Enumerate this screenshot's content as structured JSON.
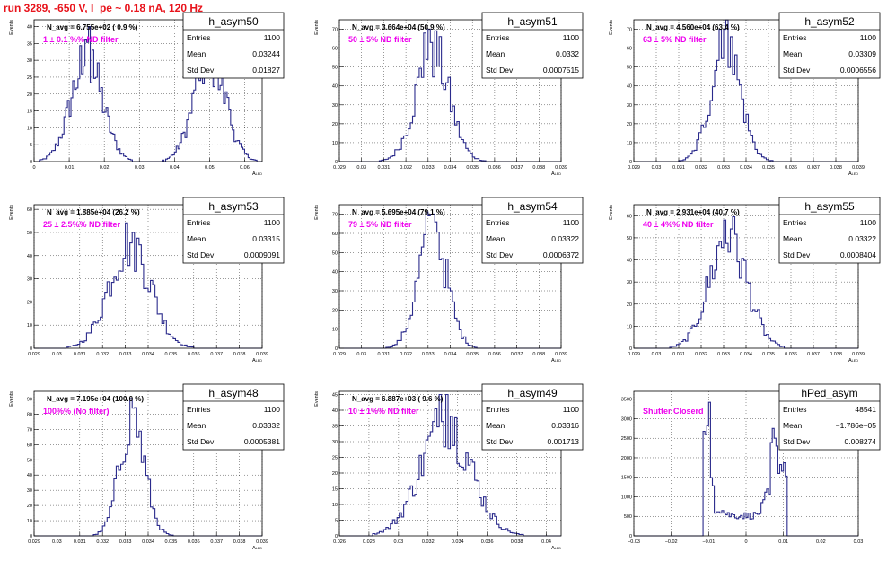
{
  "title": "run 3289,  -650 V, I_pe ~ 0.18 nA, 120 Hz",
  "colors": {
    "hist": "#2b2b8c",
    "annotation": "#ee00ee",
    "title": "#e8141c",
    "frame": "#000000"
  },
  "chart_data": [
    {
      "type": "histogram",
      "name": "h_asym50",
      "navg": "N_avg = 6.755e+02 ( 0.9 %)",
      "filter": "1 ± 0.1 %% ND filter",
      "stats": [
        [
          "Entries",
          "1100"
        ],
        [
          "Mean",
          "0.03244"
        ],
        [
          "Std Dev",
          "0.01827"
        ]
      ],
      "ylabel": "Events",
      "xlabel": "A_LED",
      "xlim": [
        0,
        0.065
      ],
      "ylim": [
        0,
        42
      ],
      "xticks": [
        0,
        0.01,
        0.02,
        0.03,
        0.04,
        0.05,
        0.06
      ],
      "xticklabels": [
        "0",
        "0.01",
        "0.02",
        "0.03",
        "0.04",
        "0.05",
        "0.06"
      ],
      "yticks": [
        0,
        5,
        10,
        15,
        20,
        25,
        30,
        35,
        40
      ],
      "peaks": [
        {
          "mu": 0.015,
          "sigma": 0.0045,
          "amp": 30
        },
        {
          "mu": 0.05,
          "sigma": 0.0045,
          "amp": 30
        }
      ],
      "spikes": [
        [
          0.0155,
          40
        ],
        [
          0.0148,
          36
        ],
        [
          0.0138,
          26
        ],
        [
          0.0165,
          33
        ],
        [
          0.046,
          27
        ],
        [
          0.047,
          24
        ],
        [
          0.05,
          30
        ],
        [
          0.0505,
          36
        ],
        [
          0.052,
          28
        ],
        [
          0.055,
          19
        ]
      ],
      "nbins": 130
    },
    {
      "type": "histogram",
      "name": "h_asym51",
      "navg": "N_avg = 3.664e+04 (50.9 %)",
      "filter": "50 ± 5% ND filter",
      "stats": [
        [
          "Entries",
          "1100"
        ],
        [
          "Mean",
          "0.0332"
        ],
        [
          "Std Dev",
          "0.0007515"
        ]
      ],
      "ylabel": "Events",
      "xlabel": "A_LED",
      "xlim": [
        0.029,
        0.039
      ],
      "ylim": [
        0,
        75
      ],
      "xticks": [
        0.029,
        0.03,
        0.031,
        0.032,
        0.033,
        0.034,
        0.035,
        0.036,
        0.037,
        0.038,
        0.039
      ],
      "xticklabels": [
        "0.029",
        "0.03",
        "0.031",
        "0.032",
        "0.033",
        "0.034",
        "0.035",
        "0.036",
        "0.037",
        "0.038",
        "0.039"
      ],
      "yticks": [
        0,
        10,
        20,
        30,
        40,
        50,
        60,
        70
      ],
      "peaks": [
        {
          "mu": 0.0332,
          "sigma": 0.00075,
          "amp": 58
        }
      ],
      "spikes": [
        [
          0.0329,
          68
        ],
        [
          0.033,
          70
        ],
        [
          0.0332,
          63
        ]
      ],
      "nbins": 100
    },
    {
      "type": "histogram",
      "name": "h_asym52",
      "navg": "N_avg = 4.560e+04 (63.4 %)",
      "filter": "63 ± 5% ND filter",
      "stats": [
        [
          "Entries",
          "1100"
        ],
        [
          "Mean",
          "0.03309"
        ],
        [
          "Std Dev",
          "0.0006556"
        ]
      ],
      "ylabel": "Events",
      "xlabel": "A_LED",
      "xlim": [
        0.029,
        0.039
      ],
      "ylim": [
        0,
        75
      ],
      "xticks": [
        0.029,
        0.03,
        0.031,
        0.032,
        0.033,
        0.034,
        0.035,
        0.036,
        0.037,
        0.038,
        0.039
      ],
      "xticklabels": [
        "0.029",
        "0.03",
        "0.031",
        "0.032",
        "0.033",
        "0.034",
        "0.035",
        "0.036",
        "0.037",
        "0.038",
        "0.039"
      ],
      "yticks": [
        0,
        10,
        20,
        30,
        40,
        50,
        60,
        70
      ],
      "peaks": [
        {
          "mu": 0.0331,
          "sigma": 0.00065,
          "amp": 62
        }
      ],
      "spikes": [
        [
          0.0329,
          70
        ],
        [
          0.0331,
          70
        ],
        [
          0.0333,
          66
        ]
      ],
      "nbins": 100
    },
    {
      "type": "histogram",
      "name": "h_asym53",
      "navg": "N_avg = 1.885e+04 (26.2 %)",
      "filter": "25 ± 2.5%% ND filter",
      "stats": [
        [
          "Entries",
          "1100"
        ],
        [
          "Mean",
          "0.03315"
        ],
        [
          "Std Dev",
          "0.0009091"
        ]
      ],
      "ylabel": "Events",
      "xlabel": "A_LED",
      "xlim": [
        0.029,
        0.039
      ],
      "ylim": [
        0,
        62
      ],
      "xticks": [
        0.029,
        0.03,
        0.031,
        0.032,
        0.033,
        0.034,
        0.035,
        0.036,
        0.037,
        0.038,
        0.039
      ],
      "xticklabels": [
        "0.029",
        "0.03",
        "0.031",
        "0.032",
        "0.033",
        "0.034",
        "0.035",
        "0.036",
        "0.037",
        "0.038",
        "0.039"
      ],
      "yticks": [
        0,
        10,
        20,
        30,
        40,
        50,
        60
      ],
      "peaks": [
        {
          "mu": 0.0332,
          "sigma": 0.0009,
          "amp": 46
        }
      ],
      "spikes": [
        [
          0.0333,
          51
        ],
        [
          0.0334,
          50
        ]
      ],
      "nbins": 100
    },
    {
      "type": "histogram",
      "name": "h_asym54",
      "navg": "N_avg = 5.695e+04 (79.1 %)",
      "filter": "79 ± 5% ND filter",
      "stats": [
        [
          "Entries",
          "1100"
        ],
        [
          "Mean",
          "0.03322"
        ],
        [
          "Std Dev",
          "0.0006372"
        ]
      ],
      "ylabel": "Events",
      "xlabel": "A_LED",
      "xlim": [
        0.029,
        0.039
      ],
      "ylim": [
        0,
        75
      ],
      "xticks": [
        0.029,
        0.03,
        0.031,
        0.032,
        0.033,
        0.034,
        0.035,
        0.036,
        0.037,
        0.038,
        0.039
      ],
      "xticklabels": [
        "0.029",
        "0.03",
        "0.031",
        "0.032",
        "0.033",
        "0.034",
        "0.035",
        "0.036",
        "0.037",
        "0.038",
        "0.039"
      ],
      "yticks": [
        0,
        10,
        20,
        30,
        40,
        50,
        60,
        70
      ],
      "peaks": [
        {
          "mu": 0.0332,
          "sigma": 0.00064,
          "amp": 62
        }
      ],
      "spikes": [
        [
          0.0332,
          70
        ],
        [
          0.0333,
          66
        ]
      ],
      "nbins": 100
    },
    {
      "type": "histogram",
      "name": "h_asym55",
      "navg": "N_avg = 2.931e+04 (40.7 %)",
      "filter": "40 ± 4%% ND filter",
      "stats": [
        [
          "Entries",
          "1100"
        ],
        [
          "Mean",
          "0.03322"
        ],
        [
          "Std Dev",
          "0.0008404"
        ]
      ],
      "ylabel": "Events",
      "xlabel": "A_LED",
      "xlim": [
        0.029,
        0.039
      ],
      "ylim": [
        0,
        65
      ],
      "xticks": [
        0.029,
        0.03,
        0.031,
        0.032,
        0.033,
        0.034,
        0.035,
        0.036,
        0.037,
        0.038,
        0.039
      ],
      "xticklabels": [
        "0.029",
        "0.03",
        "0.031",
        "0.032",
        "0.033",
        "0.034",
        "0.035",
        "0.036",
        "0.037",
        "0.038",
        "0.039"
      ],
      "yticks": [
        0,
        10,
        20,
        30,
        40,
        50,
        60
      ],
      "peaks": [
        {
          "mu": 0.0332,
          "sigma": 0.00084,
          "amp": 50
        }
      ],
      "spikes": [
        [
          0.0331,
          58
        ],
        [
          0.0333,
          54
        ]
      ],
      "nbins": 100
    },
    {
      "type": "histogram",
      "name": "h_asym48",
      "navg": "N_avg = 7.195e+04 (100.0 %)",
      "filter": "100%% (No filter)",
      "stats": [
        [
          "Entries",
          "1100"
        ],
        [
          "Mean",
          "0.03332"
        ],
        [
          "Std Dev",
          "0.0005381"
        ]
      ],
      "ylabel": "Events",
      "xlabel": "A_LED",
      "xlim": [
        0.029,
        0.039
      ],
      "ylim": [
        0,
        95
      ],
      "xticks": [
        0.029,
        0.03,
        0.031,
        0.032,
        0.033,
        0.034,
        0.035,
        0.036,
        0.037,
        0.038,
        0.039
      ],
      "xticklabels": [
        "0.029",
        "0.03",
        "0.031",
        "0.032",
        "0.033",
        "0.034",
        "0.035",
        "0.036",
        "0.037",
        "0.038",
        "0.039"
      ],
      "yticks": [
        0,
        10,
        20,
        30,
        40,
        50,
        60,
        70,
        80,
        90
      ],
      "peaks": [
        {
          "mu": 0.0333,
          "sigma": 0.00054,
          "amp": 78
        }
      ],
      "spikes": [
        [
          0.0333,
          85
        ],
        [
          0.0334,
          84
        ]
      ],
      "nbins": 100
    },
    {
      "type": "histogram",
      "name": "h_asym49",
      "navg": "N_avg = 6.887e+03 ( 9.6 %)",
      "filter": "10 ± 1%% ND filter",
      "stats": [
        [
          "Entries",
          "1100"
        ],
        [
          "Mean",
          "0.03316"
        ],
        [
          "Std Dev",
          "0.001713"
        ]
      ],
      "ylabel": "Events",
      "xlabel": "A_LED",
      "xlim": [
        0.026,
        0.041
      ],
      "ylim": [
        0,
        46
      ],
      "xticks": [
        0.026,
        0.028,
        0.03,
        0.032,
        0.034,
        0.036,
        0.038,
        0.04
      ],
      "xticklabels": [
        "0.026",
        "0.028",
        "0.03",
        "0.032",
        "0.034",
        "0.036",
        "0.038",
        "0.04"
      ],
      "yticks": [
        0,
        5,
        10,
        15,
        20,
        25,
        30,
        35,
        40,
        45
      ],
      "peaks": [
        {
          "mu": 0.0332,
          "sigma": 0.0017,
          "amp": 36
        }
      ],
      "spikes": [
        [
          0.0329,
          45
        ],
        [
          0.0333,
          45
        ],
        [
          0.0336,
          38
        ]
      ],
      "nbins": 100
    },
    {
      "type": "histogram",
      "name": "hPed_asym",
      "navg": "",
      "filter": "Shutter Closerd",
      "stats": [
        [
          "Entries",
          "48541"
        ],
        [
          "Mean",
          "−1.786e−05"
        ],
        [
          "Std Dev",
          "0.008274"
        ]
      ],
      "ylabel": "",
      "xlabel": "",
      "xlim": [
        -0.03,
        0.03
      ],
      "ylim": [
        0,
        3700
      ],
      "xticks": [
        -0.03,
        -0.02,
        -0.01,
        0,
        0.01,
        0.02,
        0.03
      ],
      "xticklabels": [
        "−0.03",
        "−0.02",
        "−0.01",
        "0",
        "0.01",
        "0.02",
        "0.03"
      ],
      "yticks": [
        0,
        500,
        1000,
        1500,
        2000,
        2500,
        3000,
        3500
      ],
      "ped": true,
      "nbins": 120
    }
  ]
}
